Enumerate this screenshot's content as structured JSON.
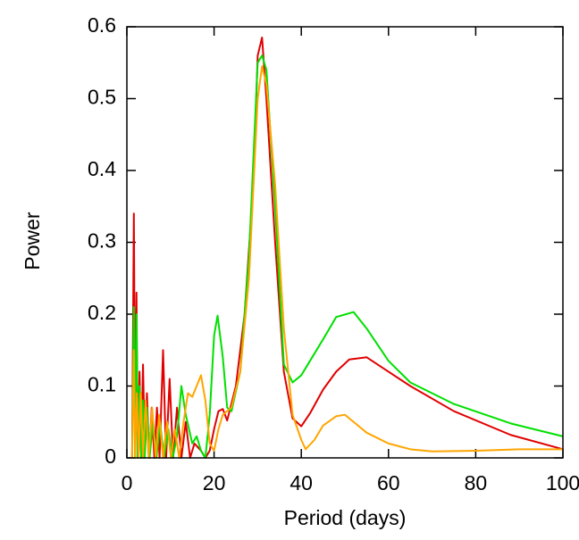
{
  "chart_data": {
    "type": "line",
    "xlabel": "Period (days)",
    "ylabel": "Power",
    "xlim": [
      0,
      100
    ],
    "ylim": [
      0,
      0.6
    ],
    "xticks": [
      0,
      20,
      40,
      60,
      80,
      100
    ],
    "yticks": [
      0,
      0.1,
      0.2,
      0.3,
      0.4,
      0.5,
      0.6
    ],
    "series": [
      {
        "color": "#e00000",
        "x": [
          1.2,
          1.6,
          1.9,
          2.2,
          2.5,
          2.9,
          3.3,
          3.7,
          4.1,
          4.6,
          5.1,
          5.7,
          6.3,
          6.9,
          7.5,
          8.3,
          9.0,
          9.8,
          10.6,
          11.5,
          12.5,
          13.5,
          14.5,
          15.5,
          17,
          18,
          19,
          20,
          21,
          22,
          23,
          25,
          27,
          29,
          30,
          31,
          32,
          34,
          36,
          38,
          40,
          42,
          45,
          48,
          51,
          55,
          60,
          65,
          75,
          88,
          100
        ],
        "values": [
          0,
          0.34,
          0.02,
          0.23,
          0,
          0.12,
          0,
          0.13,
          0.01,
          0.09,
          0,
          0.07,
          0,
          0.07,
          0,
          0.15,
          0,
          0.11,
          0,
          0.07,
          0,
          0.05,
          0,
          0.02,
          0.01,
          0,
          0.01,
          0.04,
          0.065,
          0.068,
          0.052,
          0.1,
          0.2,
          0.38,
          0.56,
          0.585,
          0.5,
          0.3,
          0.12,
          0.055,
          0.044,
          0.062,
          0.095,
          0.12,
          0.137,
          0.14,
          0.12,
          0.1,
          0.065,
          0.032,
          0.012
        ]
      },
      {
        "color": "#00e000",
        "x": [
          1.2,
          1.6,
          1.9,
          2.2,
          2.5,
          2.9,
          3.3,
          3.7,
          4.1,
          4.6,
          5.2,
          6,
          6.8,
          7.6,
          8.5,
          9.5,
          10.5,
          11.5,
          12.5,
          13.5,
          15,
          16,
          17,
          18,
          19,
          20,
          20.8,
          22,
          23,
          24,
          26,
          28,
          30,
          31,
          32,
          34,
          36,
          38,
          40,
          42,
          45,
          48,
          52,
          55,
          60,
          65,
          75,
          88,
          100
        ],
        "values": [
          0,
          0.21,
          0,
          0.2,
          0,
          0.1,
          0,
          0.08,
          0,
          0.07,
          0,
          0.05,
          0,
          0.05,
          0,
          0.04,
          0,
          0.03,
          0.1,
          0.06,
          0.02,
          0.03,
          0.01,
          0,
          0.06,
          0.17,
          0.198,
          0.14,
          0.07,
          0.065,
          0.12,
          0.28,
          0.55,
          0.56,
          0.54,
          0.35,
          0.13,
          0.105,
          0.115,
          0.135,
          0.165,
          0.196,
          0.203,
          0.18,
          0.135,
          0.105,
          0.075,
          0.048,
          0.03
        ]
      },
      {
        "color": "#ffa500",
        "x": [
          1.2,
          1.6,
          1.9,
          2.3,
          2.7,
          3.2,
          3.7,
          4.3,
          5,
          5.8,
          6.6,
          7.4,
          8.3,
          9.2,
          10.1,
          11,
          12,
          13,
          14,
          15,
          16,
          17,
          18,
          19,
          20,
          21,
          22,
          24,
          26,
          28,
          30,
          31,
          32,
          34,
          36,
          38,
          40,
          41,
          43,
          45,
          48,
          50,
          52,
          55,
          60,
          65,
          70,
          80,
          90,
          100
        ],
        "values": [
          0,
          0.15,
          0,
          0.09,
          0,
          0.09,
          0,
          0.08,
          0,
          0.07,
          0,
          0.06,
          0,
          0.05,
          0,
          0.04,
          0,
          0.05,
          0.09,
          0.085,
          0.1,
          0.115,
          0.08,
          0.02,
          0.01,
          0.04,
          0.06,
          0.07,
          0.12,
          0.25,
          0.5,
          0.545,
          0.52,
          0.38,
          0.18,
          0.06,
          0.025,
          0.012,
          0.025,
          0.045,
          0.058,
          0.06,
          0.05,
          0.035,
          0.02,
          0.012,
          0.009,
          0.01,
          0.012,
          0.012
        ]
      }
    ]
  }
}
